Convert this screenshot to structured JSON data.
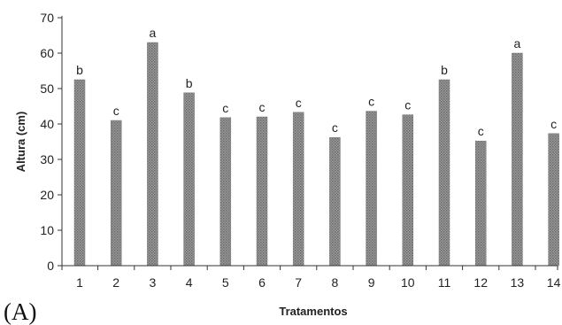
{
  "panel_label": "(A)",
  "chart_data": {
    "type": "bar",
    "xlabel": "Tratamentos",
    "ylabel": "Altura (cm)",
    "ylim": [
      0,
      70
    ],
    "yticks": [
      0,
      10,
      20,
      30,
      40,
      50,
      60,
      70
    ],
    "grid": false,
    "categories": [
      "1",
      "2",
      "3",
      "4",
      "5",
      "6",
      "7",
      "8",
      "9",
      "10",
      "11",
      "12",
      "13",
      "14"
    ],
    "values": [
      52.5,
      41,
      63,
      48.8,
      41.8,
      42,
      43.3,
      36.2,
      43.6,
      42.6,
      52.5,
      35.2,
      60,
      37.3
    ],
    "significance_letters": [
      "b",
      "c",
      "a",
      "b",
      "c",
      "c",
      "c",
      "c",
      "c",
      "c",
      "b",
      "c",
      "a",
      "c"
    ],
    "bar_color": "#8a8a8a"
  }
}
